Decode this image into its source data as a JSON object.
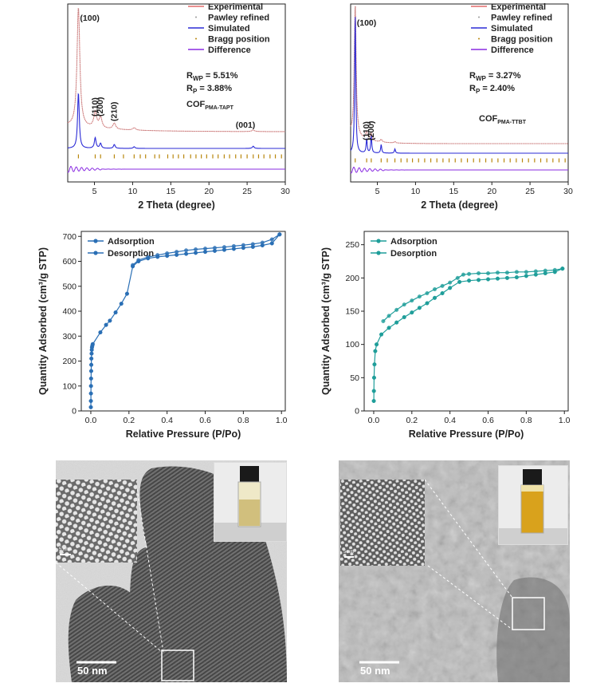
{
  "chart_data": [
    {
      "type": "line",
      "panel": "xrd-tapt",
      "xlabel": "2 Theta (degree)",
      "xlim": [
        1.5,
        30
      ],
      "xticks": [
        5,
        10,
        15,
        20,
        25,
        30
      ],
      "legend": [
        "Experimental",
        "Pawley refined",
        "Simulated",
        "Bragg position",
        "Difference"
      ],
      "stats": {
        "rwp_sym": "R",
        "rwp_sub": "WP",
        "rwp_val": " = 5.51%",
        "rp_sym": "R",
        "rp_sub": "P",
        "rp_val": " = 3.88%"
      },
      "compound": {
        "base": "COF",
        "sub": "PMA-TAPT"
      },
      "peak_labels": [
        "(100)",
        "(110)",
        "(200)",
        "(210)",
        "(001)"
      ],
      "peaks": [
        {
          "x": 2.9,
          "label": "(100)",
          "exp": 1.0,
          "sim": 1.0
        },
        {
          "x": 5.1,
          "label": "(110)",
          "exp": 0.13,
          "sim": 0.19
        },
        {
          "x": 5.8,
          "label": "(200)",
          "exp": 0.09,
          "sim": 0.09
        },
        {
          "x": 7.6,
          "label": "(210)",
          "exp": 0.05,
          "sim": 0.07
        },
        {
          "x": 10.2,
          "label": "",
          "exp": 0.02,
          "sim": 0.03
        },
        {
          "x": 25.8,
          "label": "(001)",
          "exp": 0.012,
          "sim": 0.04
        }
      ],
      "bragg_positions": [
        2.9,
        5.1,
        5.8,
        7.6,
        8.8,
        10.2,
        11.0,
        11.7,
        12.9,
        13.5,
        14.6,
        15.3,
        16.0,
        16.7,
        17.6,
        18.3,
        19.0,
        19.7,
        20.5,
        21.2,
        22.0,
        22.7,
        23.5,
        24.2,
        25.0,
        25.8,
        26.5,
        27.2,
        28.0,
        28.7,
        29.5
      ]
    },
    {
      "type": "line",
      "panel": "xrd-ttbt",
      "xlabel": "2 Theta (degree)",
      "xlim": [
        1.5,
        30
      ],
      "xticks": [
        5,
        10,
        15,
        20,
        25,
        30
      ],
      "legend": [
        "Experimental",
        "Pawley refined",
        "Simulated",
        "Bragg position",
        "Difference"
      ],
      "stats": {
        "rwp_sym": "R",
        "rwp_sub": "WP",
        "rwp_val": " = 3.27%",
        "rp_sym": "R",
        "rp_sub": "P",
        "rp_val": " = 2.40%"
      },
      "compound": {
        "base": "COF",
        "sub": "PMA-TTBT"
      },
      "peak_labels": [
        "(100)",
        "(110)",
        "(200)"
      ],
      "peaks": [
        {
          "x": 2.1,
          "label": "(100)",
          "exp": 1.0,
          "sim": 1.0
        },
        {
          "x": 3.6,
          "label": "(110)",
          "exp": 0.06,
          "sim": 0.1
        },
        {
          "x": 4.2,
          "label": "(200)",
          "exp": 0.05,
          "sim": 0.12
        },
        {
          "x": 5.5,
          "label": "",
          "exp": 0.02,
          "sim": 0.06
        },
        {
          "x": 7.3,
          "label": "",
          "exp": 0.01,
          "sim": 0.03
        }
      ],
      "bragg_positions": [
        2.1,
        3.6,
        4.2,
        5.5,
        6.3,
        7.3,
        8.1,
        8.9,
        9.6,
        10.4,
        11.2,
        12.0,
        12.8,
        13.6,
        14.4,
        15.2,
        16.0,
        16.8,
        17.6,
        18.4,
        19.2,
        20.0,
        20.8,
        21.6,
        22.4,
        23.2,
        24.0,
        24.8,
        25.6,
        26.4,
        27.2,
        28.0,
        28.8,
        29.6
      ]
    },
    {
      "type": "line",
      "panel": "bet-tapt",
      "xlabel": "Relative Pressure (P/Po)",
      "ylabel": "Quantity Adsorbed (cm³/g STP)",
      "xlim": [
        -0.05,
        1.02
      ],
      "ylim": [
        0,
        720
      ],
      "xticks": [
        0.0,
        0.2,
        0.4,
        0.6,
        0.8,
        1.0
      ],
      "yticks": [
        0,
        100,
        200,
        300,
        400,
        500,
        600,
        700
      ],
      "color": "#2a6fb5",
      "legend": [
        "Adsorption",
        "Desorption"
      ],
      "series": [
        {
          "name": "Adsorption",
          "x": [
            0.0002,
            0.0004,
            0.0007,
            0.001,
            0.0015,
            0.002,
            0.0025,
            0.003,
            0.004,
            0.005,
            0.006,
            0.008,
            0.01,
            0.05,
            0.08,
            0.1,
            0.13,
            0.16,
            0.19,
            0.22,
            0.25,
            0.3,
            0.35,
            0.4,
            0.45,
            0.5,
            0.55,
            0.6,
            0.65,
            0.7,
            0.75,
            0.8,
            0.85,
            0.9,
            0.95,
            0.99
          ],
          "y": [
            15,
            40,
            70,
            100,
            130,
            160,
            185,
            210,
            230,
            245,
            255,
            262,
            268,
            315,
            345,
            362,
            395,
            430,
            470,
            580,
            600,
            612,
            618,
            622,
            626,
            630,
            634,
            638,
            642,
            646,
            650,
            654,
            658,
            664,
            672,
            708
          ]
        },
        {
          "name": "Desorption",
          "x": [
            0.99,
            0.95,
            0.9,
            0.85,
            0.8,
            0.75,
            0.7,
            0.65,
            0.6,
            0.55,
            0.5,
            0.45,
            0.4,
            0.35,
            0.3,
            0.25,
            0.22
          ],
          "y": [
            708,
            688,
            675,
            669,
            665,
            661,
            657,
            654,
            651,
            648,
            644,
            638,
            632,
            625,
            617,
            605,
            585
          ]
        }
      ]
    },
    {
      "type": "line",
      "panel": "bet-ttbt",
      "xlabel": "Relative Pressure (P/Po)",
      "ylabel": "Quantity Adsorbed (cm³/g STP)",
      "xlim": [
        -0.05,
        1.02
      ],
      "ylim": [
        0,
        270
      ],
      "xticks": [
        0.0,
        0.2,
        0.4,
        0.6,
        0.8,
        1.0
      ],
      "yticks": [
        0,
        50,
        100,
        150,
        200,
        250
      ],
      "color": "#1f9e9a",
      "legend": [
        "Adsorption",
        "Desorption"
      ],
      "series": [
        {
          "name": "Adsorption",
          "x": [
            0.0005,
            0.001,
            0.002,
            0.004,
            0.008,
            0.015,
            0.04,
            0.08,
            0.12,
            0.16,
            0.2,
            0.24,
            0.28,
            0.32,
            0.36,
            0.4,
            0.45,
            0.5,
            0.55,
            0.6,
            0.65,
            0.7,
            0.75,
            0.8,
            0.85,
            0.9,
            0.95,
            0.99
          ],
          "y": [
            15,
            30,
            50,
            70,
            90,
            100,
            115,
            125,
            133,
            141,
            148,
            155,
            162,
            170,
            177,
            185,
            194,
            196,
            197,
            198,
            199,
            200,
            201,
            203,
            205,
            207,
            209,
            214
          ]
        },
        {
          "name": "Desorption",
          "x": [
            0.99,
            0.95,
            0.9,
            0.85,
            0.8,
            0.75,
            0.7,
            0.65,
            0.6,
            0.55,
            0.5,
            0.47,
            0.44,
            0.4,
            0.36,
            0.32,
            0.28,
            0.24,
            0.2,
            0.16,
            0.12,
            0.08,
            0.05
          ],
          "y": [
            214,
            212,
            211,
            210,
            209,
            209,
            208,
            208,
            207,
            207,
            206,
            205,
            200,
            193,
            188,
            183,
            177,
            172,
            166,
            160,
            152,
            143,
            135
          ]
        }
      ]
    }
  ],
  "tem": [
    {
      "scale_main": "50 nm",
      "scale_inset": "5 nm"
    },
    {
      "scale_main": "50 nm",
      "scale_inset": "5 nm"
    }
  ]
}
